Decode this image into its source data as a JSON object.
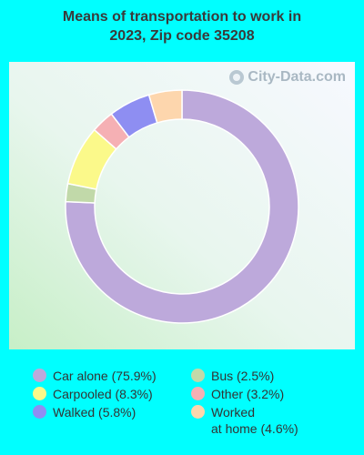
{
  "chart_data": {
    "type": "pie",
    "title": "Means of transportation to work in\n2023, Zip code 35208",
    "watermark": "City-Data.com",
    "slices": [
      {
        "label": "Car alone (75.9%)",
        "value": 75.9,
        "color": "#bda9db"
      },
      {
        "label": "Bus (2.5%)",
        "value": 2.5,
        "color": "#c1d9a9"
      },
      {
        "label": "Carpooled (8.3%)",
        "value": 8.3,
        "color": "#fbf98a"
      },
      {
        "label": "Other (3.2%)",
        "value": 3.2,
        "color": "#f5b0b4"
      },
      {
        "label": "Walked (5.8%)",
        "value": 5.8,
        "color": "#8e8ef2"
      },
      {
        "label": "Worked\nat home (4.6%)",
        "value": 4.6,
        "color": "#fdd6ad"
      }
    ]
  }
}
